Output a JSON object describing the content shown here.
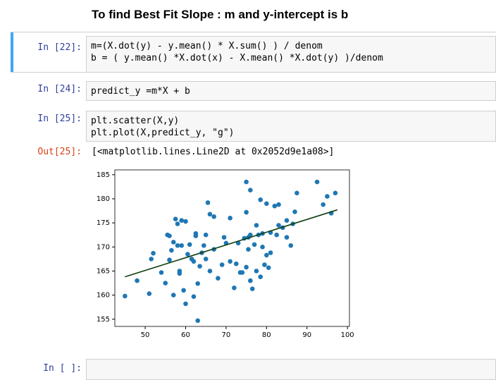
{
  "header": {
    "title": "To find Best Fit Slope : m and y-intercept is b"
  },
  "cells": [
    {
      "prompt": "In [22]:",
      "code": [
        "m=(X.dot(y) - y.mean() * X.sum() ) / denom",
        "b = ( y.mean() *X.dot(x) - X.mean() *X.dot(y) )/denom"
      ]
    },
    {
      "prompt": "In [24]:",
      "code": [
        "predict_y =m*X + b"
      ]
    },
    {
      "prompt": "In [25]:",
      "code": [
        "plt.scatter(X,y)",
        "plt.plot(X,predict_y, \"g\")"
      ],
      "output_prompt": "Out[25]:",
      "output": "[<matplotlib.lines.Line2D at 0x2052d9e1a08>]"
    },
    {
      "prompt": "In [ ]:"
    }
  ],
  "chart_data": {
    "type": "scatter",
    "xlim": [
      42.5,
      100.5
    ],
    "ylim": [
      153.5,
      186
    ],
    "xticks": [
      50,
      60,
      70,
      80,
      90,
      100
    ],
    "yticks": [
      155,
      160,
      165,
      170,
      175,
      180,
      185
    ],
    "series": [
      {
        "type": "scatter",
        "color": "#1f77b4",
        "x": [
          45,
          48,
          51,
          51.5,
          52,
          54,
          55,
          55.5,
          56,
          56,
          56.5,
          57,
          57,
          57.5,
          58,
          58,
          58.5,
          58.5,
          59,
          59,
          59.5,
          60,
          60,
          60.5,
          61,
          61.5,
          62,
          62.5,
          62.5,
          62,
          63,
          63,
          63.5,
          64,
          64.5,
          65,
          65,
          65.5,
          66,
          66,
          67,
          67,
          68,
          69,
          69.5,
          70,
          71,
          71,
          72,
          72.5,
          73,
          73.5,
          74,
          74.5,
          75,
          75,
          75,
          75.5,
          75.5,
          76,
          76,
          76,
          76.5,
          77,
          77.5,
          77.5,
          78,
          78.5,
          78.5,
          79,
          79,
          79.5,
          80,
          80,
          80.5,
          81,
          81,
          82,
          82.5,
          83,
          83,
          84,
          85,
          85,
          86,
          86.5,
          87,
          87.5,
          92.5,
          94,
          95,
          96,
          97
        ],
        "values": [
          159.8,
          163,
          160.3,
          167.5,
          168.7,
          164.7,
          162.5,
          172.5,
          172.3,
          167.3,
          169.3,
          160,
          171,
          175.8,
          174.8,
          170.3,
          164.5,
          165,
          175.5,
          170.3,
          161,
          158.2,
          175.3,
          168.5,
          170.5,
          167.5,
          167,
          172.8,
          172.3,
          159.7,
          162.4,
          154.7,
          166,
          168.8,
          170.3,
          172.5,
          167.5,
          179.2,
          176.8,
          165,
          176.3,
          169.5,
          163.5,
          166.3,
          172,
          170.8,
          176,
          167,
          161.5,
          166.5,
          170.8,
          164.7,
          164.7,
          171.8,
          183.5,
          177.2,
          165.8,
          172,
          169.5,
          181.8,
          172.5,
          163,
          161.3,
          170.5,
          174.5,
          165,
          172.5,
          179.8,
          163.8,
          172.8,
          170,
          166.3,
          179,
          168.3,
          165.7,
          173,
          168.8,
          178.5,
          172.5,
          178.8,
          174.5,
          174,
          172,
          175.5,
          170.3,
          174.8,
          177.3,
          181.2,
          183.5,
          178.8,
          180.5,
          177,
          181.2
        ]
      },
      {
        "type": "line",
        "color": "#0f3f0f",
        "x": [
          45,
          97.5
        ],
        "values": [
          163.8,
          177.7
        ]
      }
    ]
  }
}
